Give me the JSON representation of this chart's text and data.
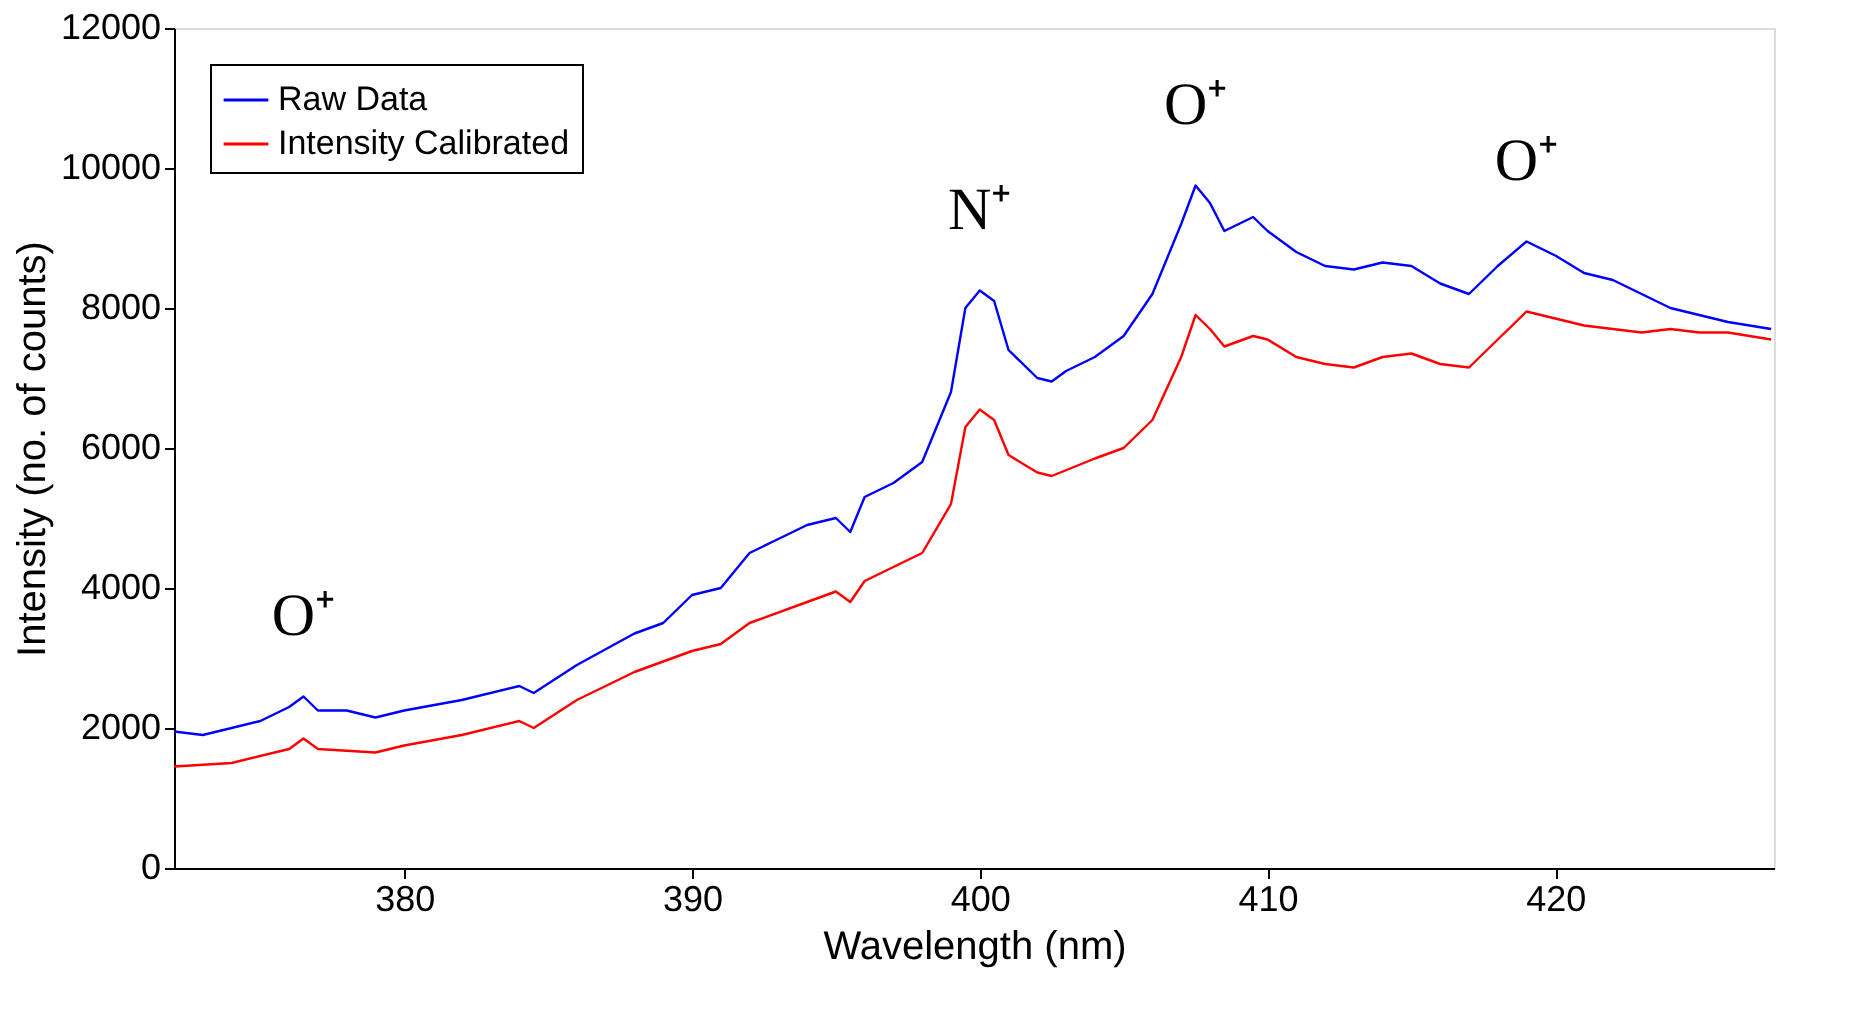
{
  "chart_data": {
    "type": "line",
    "xlabel": "Wavelength (nm)",
    "ylabel": "Intensity (no. of counts)",
    "xlim": [
      372,
      427.6
    ],
    "xticks": [
      380,
      390,
      400,
      410,
      420
    ],
    "ylim": [
      0,
      12000
    ],
    "yticks": [
      0,
      2000,
      4000,
      6000,
      8000,
      10000,
      12000
    ],
    "grid": false,
    "legend": "top left",
    "line_style": "solid",
    "marker": "none",
    "series": [
      {
        "name": "Raw Data",
        "color": "#0000ff",
        "x": [
          372,
          373,
          374,
          375,
          376,
          376.5,
          377,
          378,
          379,
          380,
          382,
          384,
          384.5,
          386,
          388,
          389,
          390,
          391,
          392,
          393,
          394,
          395,
          395.5,
          396,
          397,
          398,
          399,
          399.5,
          400,
          400.5,
          401,
          402,
          402.5,
          403,
          404,
          405,
          406,
          407,
          407.5,
          408,
          408.5,
          409,
          409.5,
          410,
          411,
          412,
          413,
          414,
          415,
          416,
          417,
          418,
          419,
          420,
          421,
          422,
          423,
          424,
          425,
          426,
          427.5
        ],
        "values": [
          1950,
          1900,
          2000,
          2100,
          2300,
          2450,
          2250,
          2250,
          2150,
          2250,
          2400,
          2600,
          2500,
          2900,
          3350,
          3500,
          3900,
          4000,
          4500,
          4700,
          4900,
          5000,
          4800,
          5300,
          5500,
          5800,
          6800,
          8000,
          8250,
          8100,
          7400,
          7000,
          6950,
          7100,
          7300,
          7600,
          8200,
          9200,
          9750,
          9500,
          9100,
          9200,
          9300,
          9100,
          8800,
          8600,
          8550,
          8650,
          8600,
          8350,
          8200,
          8600,
          8950,
          8750,
          8500,
          8400,
          8200,
          8000,
          7900,
          7800,
          7700
        ]
      },
      {
        "name": "Intensity Calibrated",
        "color": "#ff0000",
        "x": [
          372,
          374,
          376,
          376.5,
          377,
          379,
          380,
          382,
          384,
          384.5,
          386,
          388,
          390,
          391,
          392,
          394,
          395,
          395.5,
          396,
          398,
          399,
          399.5,
          400,
          400.5,
          401,
          402,
          402.5,
          404,
          405,
          406,
          407,
          407.5,
          408,
          408.5,
          409.5,
          410,
          411,
          412,
          413,
          414,
          415,
          416,
          417,
          418,
          419,
          420,
          421,
          422,
          423,
          424,
          425,
          426,
          427.5
        ],
        "values": [
          1450,
          1500,
          1700,
          1850,
          1700,
          1650,
          1750,
          1900,
          2100,
          2000,
          2400,
          2800,
          3100,
          3200,
          3500,
          3800,
          3950,
          3800,
          4100,
          4500,
          5200,
          6300,
          6550,
          6400,
          5900,
          5650,
          5600,
          5850,
          6000,
          6400,
          7300,
          7900,
          7700,
          7450,
          7600,
          7550,
          7300,
          7200,
          7150,
          7300,
          7350,
          7200,
          7150,
          7550,
          7950,
          7850,
          7750,
          7700,
          7650,
          7700,
          7650,
          7650,
          7550
        ]
      }
    ],
    "annotations": [
      {
        "text": "O⁺",
        "x": 376.5,
        "y": 2450
      },
      {
        "text": "N⁺",
        "x": 400,
        "y": 8250
      },
      {
        "text": "O⁺",
        "x": 407.5,
        "y": 9750
      },
      {
        "text": "O⁺",
        "x": 419,
        "y": 8950
      }
    ]
  }
}
